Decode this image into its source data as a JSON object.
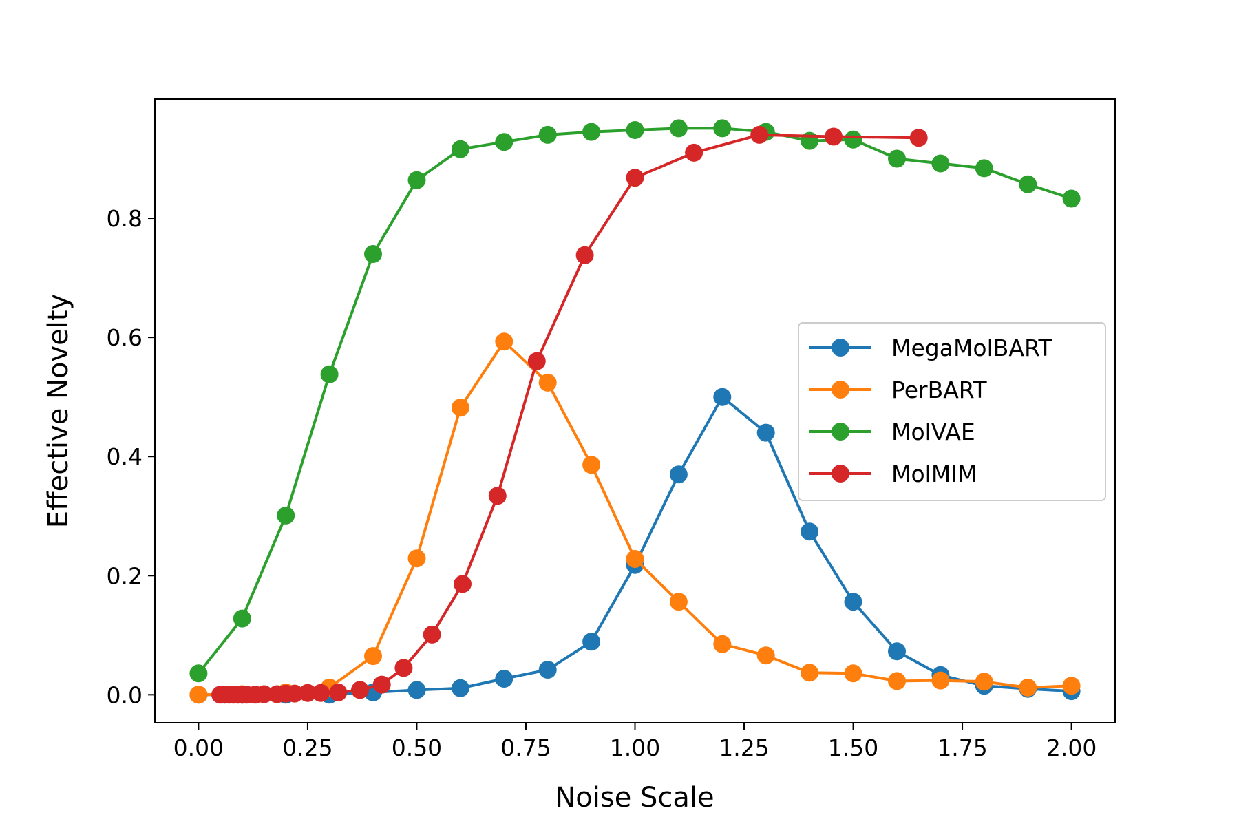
{
  "chart_data": {
    "type": "line",
    "title": "",
    "xlabel": "Noise Scale",
    "ylabel": "Effective Novelty",
    "xlim": [
      -0.1,
      2.1
    ],
    "ylim": [
      -0.047,
      1.0
    ],
    "xticks": [
      0.0,
      0.25,
      0.5,
      0.75,
      1.0,
      1.25,
      1.5,
      1.75,
      2.0
    ],
    "xtick_labels": [
      "0.00",
      "0.25",
      "0.50",
      "0.75",
      "1.00",
      "1.25",
      "1.50",
      "1.75",
      "2.00"
    ],
    "yticks": [
      0.0,
      0.2,
      0.4,
      0.6,
      0.8
    ],
    "ytick_labels": [
      "0.0",
      "0.2",
      "0.4",
      "0.6",
      "0.8"
    ],
    "grid": false,
    "legend_position": "center-right",
    "series": [
      {
        "name": "MegaMolBART",
        "color": "#1f77b4",
        "x": [
          0.0,
          0.1,
          0.2,
          0.3,
          0.4,
          0.5,
          0.6,
          0.7,
          0.8,
          0.9,
          1.0,
          1.1,
          1.2,
          1.3,
          1.4,
          1.5,
          1.6,
          1.7,
          1.8,
          1.9,
          2.0
        ],
        "y": [
          0.0,
          0.0,
          0.0,
          0.0,
          0.004,
          0.008,
          0.011,
          0.027,
          0.042,
          0.089,
          0.218,
          0.37,
          0.5,
          0.44,
          0.274,
          0.156,
          0.073,
          0.033,
          0.015,
          0.01,
          0.006
        ]
      },
      {
        "name": "PerBART",
        "color": "#ff7f0e",
        "x": [
          0.0,
          0.1,
          0.2,
          0.3,
          0.4,
          0.5,
          0.6,
          0.7,
          0.8,
          0.9,
          1.0,
          1.1,
          1.2,
          1.3,
          1.4,
          1.5,
          1.6,
          1.7,
          1.8,
          1.9,
          2.0
        ],
        "y": [
          0.0,
          0.001,
          0.004,
          0.012,
          0.065,
          0.229,
          0.482,
          0.593,
          0.524,
          0.386,
          0.228,
          0.156,
          0.085,
          0.066,
          0.037,
          0.036,
          0.023,
          0.024,
          0.022,
          0.012,
          0.015
        ]
      },
      {
        "name": "MolVAE",
        "color": "#2ca02c",
        "x": [
          0.0,
          0.1,
          0.2,
          0.3,
          0.4,
          0.5,
          0.6,
          0.7,
          0.8,
          0.9,
          1.0,
          1.1,
          1.2,
          1.3,
          1.4,
          1.5,
          1.6,
          1.7,
          1.8,
          1.9,
          2.0
        ],
        "y": [
          0.036,
          0.128,
          0.301,
          0.538,
          0.74,
          0.864,
          0.916,
          0.928,
          0.94,
          0.945,
          0.948,
          0.951,
          0.951,
          0.945,
          0.93,
          0.932,
          0.9,
          0.892,
          0.884,
          0.857,
          0.833
        ]
      },
      {
        "name": "MolMIM",
        "color": "#d62728",
        "x": [
          0.05,
          0.06,
          0.07,
          0.08,
          0.09,
          0.1,
          0.11,
          0.13,
          0.15,
          0.18,
          0.2,
          0.22,
          0.25,
          0.28,
          0.32,
          0.37,
          0.42,
          0.47,
          0.535,
          0.605,
          0.685,
          0.775,
          0.885,
          1.0,
          1.135,
          1.285,
          1.455,
          1.65
        ],
        "y": [
          0.0,
          0.0,
          0.0,
          0.0,
          0.0,
          0.0,
          0.0,
          0.0,
          0.001,
          0.001,
          0.002,
          0.002,
          0.003,
          0.003,
          0.004,
          0.008,
          0.017,
          0.045,
          0.101,
          0.186,
          0.334,
          0.56,
          0.738,
          0.868,
          0.91,
          0.94,
          0.937,
          0.935
        ]
      }
    ]
  }
}
